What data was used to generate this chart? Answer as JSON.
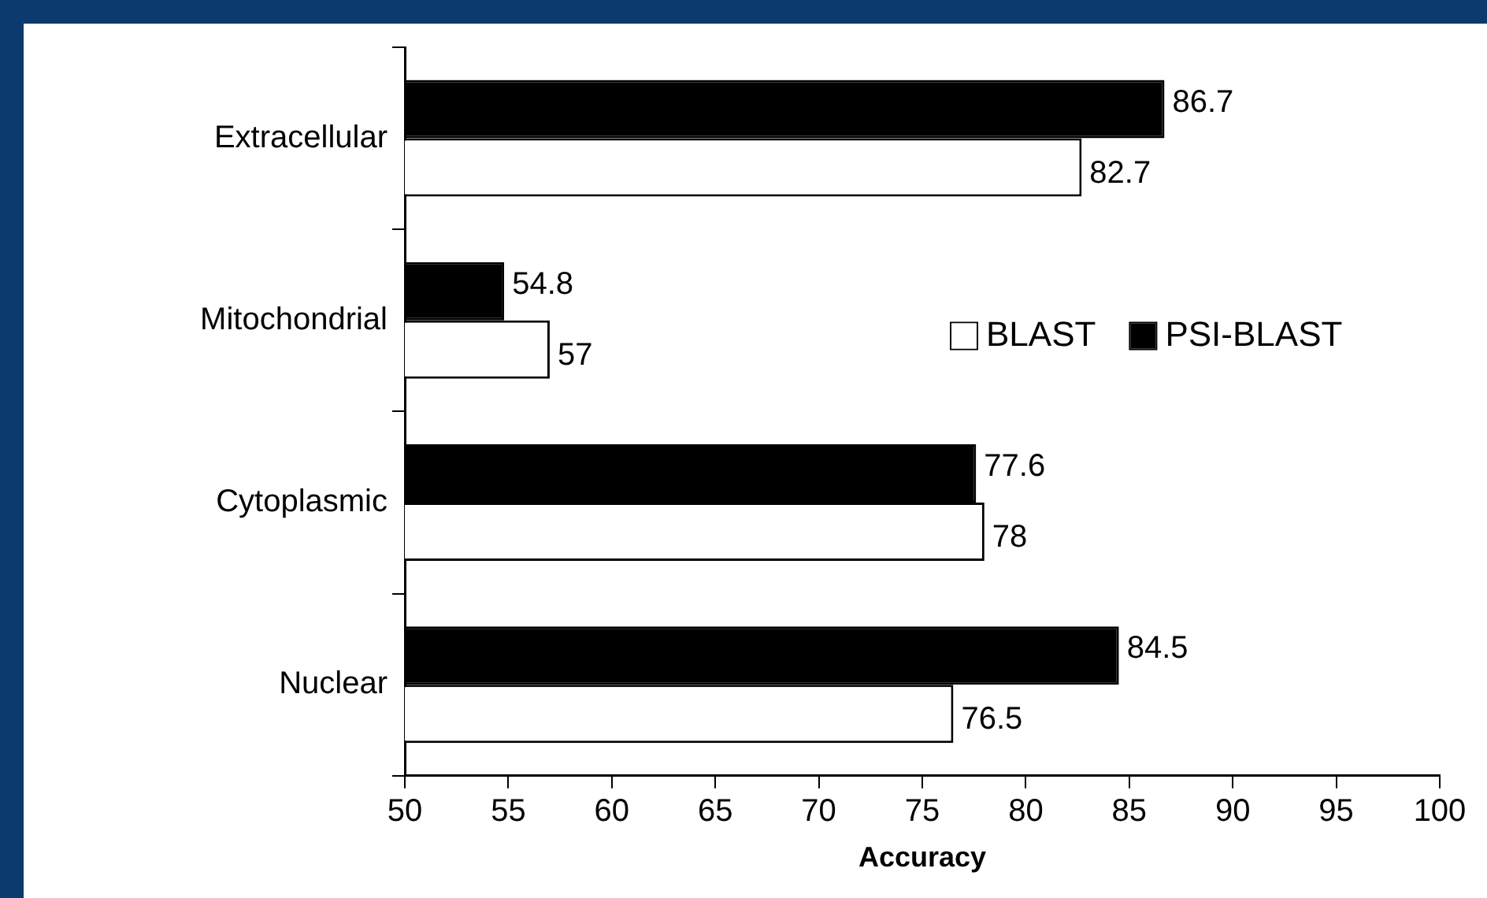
{
  "chart_data": {
    "type": "bar",
    "orientation": "horizontal",
    "xlabel": "Accuracy",
    "categories": [
      "Extracellular",
      "Mitochondrial",
      "Cytoplasmic",
      "Nuclear"
    ],
    "series": [
      {
        "name": "PSI-BLAST",
        "color": "#000000",
        "values": [
          86.7,
          54.8,
          77.6,
          84.5
        ]
      },
      {
        "name": "BLAST",
        "color": "#ffffff",
        "values": [
          82.7,
          57,
          78,
          76.5
        ]
      }
    ],
    "xlim": [
      50,
      100
    ],
    "xticks": [
      50,
      55,
      60,
      65,
      70,
      75,
      80,
      85,
      90,
      95,
      100
    ],
    "data_labels": true,
    "grid": false,
    "legend": "right"
  }
}
